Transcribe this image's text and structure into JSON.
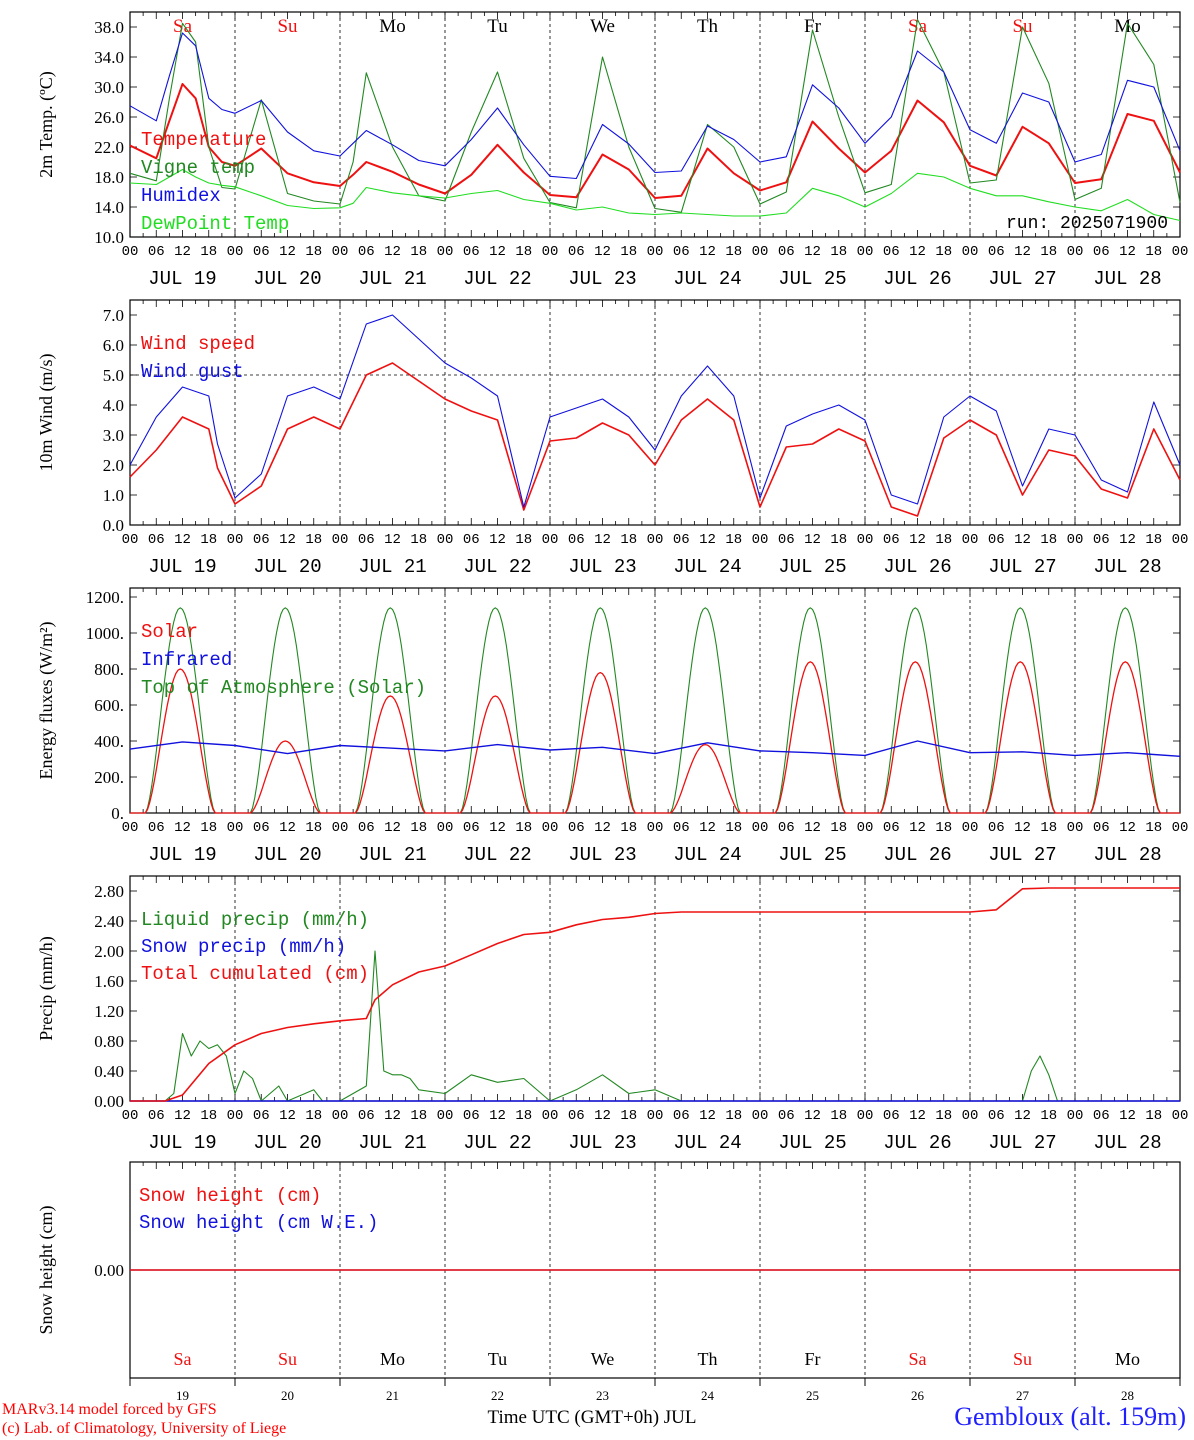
{
  "colors": {
    "red": "#ee1111",
    "green": "#228822",
    "blue": "#1111dd",
    "lightgreen": "#22dd22",
    "axis": "#000000"
  },
  "days": [
    "Sa",
    "Su",
    "Mo",
    "Tu",
    "We",
    "Th",
    "Fr",
    "Sa",
    "Su",
    "Mo"
  ],
  "day_colors": [
    "red",
    "red",
    "black",
    "black",
    "black",
    "black",
    "black",
    "red",
    "red",
    "black"
  ],
  "dates": [
    "JUL 19",
    "JUL 20",
    "JUL 21",
    "JUL 22",
    "JUL 23",
    "JUL 24",
    "JUL 25",
    "JUL 26",
    "JUL 27",
    "JUL 28"
  ],
  "day_numbers": [
    "19",
    "20",
    "21",
    "22",
    "23",
    "24",
    "25",
    "26",
    "27",
    "28"
  ],
  "hour_ticks": [
    "00",
    "06",
    "12",
    "18"
  ],
  "run_label": "run: 2025071900",
  "footer": {
    "xlabel": "Time UTC (GMT+0h) JUL",
    "credit_line1": "MARv3.14 model forced by GFS",
    "credit_line2": "(c) Lab. of Climatology, University of Liege",
    "station": "Gembloux (alt. 159m)"
  },
  "chart_data": [
    {
      "type": "line",
      "ylabel": "2m Temp. (ºC)",
      "ylim": [
        10,
        40
      ],
      "yticks": [
        "10.0",
        "14.0",
        "18.0",
        "22.0",
        "26.0",
        "30.0",
        "34.0",
        "38.0"
      ],
      "x_unit": "hours since JUL 19 00 UTC",
      "x": [
        0,
        6,
        9,
        12,
        15,
        18,
        21,
        24,
        30,
        36,
        42,
        48,
        51,
        54,
        60,
        66,
        72,
        78,
        84,
        90,
        96,
        102,
        108,
        114,
        120,
        126,
        132,
        138,
        144,
        150,
        156,
        162,
        168,
        174,
        180,
        186,
        192,
        198,
        204,
        210,
        216,
        222,
        228,
        234,
        240
      ],
      "series": [
        {
          "name": "Temperature",
          "color": "red",
          "values": [
            22.2,
            20.5,
            25.5,
            30.4,
            28.5,
            22.0,
            20.0,
            19.5,
            21.8,
            18.5,
            17.3,
            16.8,
            18.3,
            20.0,
            18.7,
            17.0,
            15.8,
            18.3,
            22.3,
            18.6,
            15.6,
            15.3,
            21.0,
            19.0,
            15.2,
            15.5,
            21.8,
            18.5,
            16.2,
            17.3,
            25.4,
            21.8,
            18.6,
            21.5,
            28.2,
            25.3,
            19.5,
            18.2,
            24.7,
            22.5,
            17.2,
            17.7,
            26.4,
            25.5,
            18.6
          ]
        },
        {
          "name": "Vigne temp",
          "color": "green",
          "values": [
            18.5,
            17.5,
            28.5,
            38.5,
            36.0,
            22.0,
            16.6,
            16.4,
            28.3,
            15.8,
            14.8,
            14.4,
            20.0,
            31.9,
            22.0,
            15.5,
            14.8,
            24.0,
            32.0,
            20.5,
            14.6,
            13.9,
            34.0,
            22.0,
            13.8,
            13.3,
            25.0,
            22.0,
            14.4,
            16.0,
            37.6,
            26.0,
            15.9,
            17.0,
            39.0,
            32.0,
            17.2,
            17.6,
            38.0,
            30.5,
            15.0,
            16.5,
            38.5,
            33.0,
            14.6
          ]
        },
        {
          "name": "Humidex",
          "color": "blue",
          "values": [
            27.5,
            25.5,
            31.5,
            37.2,
            35.5,
            28.5,
            27.0,
            26.5,
            28.2,
            24.0,
            21.5,
            20.8,
            22.5,
            24.2,
            22.3,
            20.2,
            19.5,
            23.0,
            27.2,
            22.3,
            18.1,
            17.8,
            25.0,
            22.4,
            18.6,
            18.8,
            24.8,
            23.0,
            20.0,
            20.7,
            30.3,
            27.2,
            22.5,
            26.0,
            34.8,
            32.0,
            24.3,
            22.5,
            29.2,
            28.0,
            20.0,
            21.0,
            30.9,
            30.0,
            21.5
          ]
        },
        {
          "name": "DewPoint Temp",
          "color": "lightgreen",
          "values": [
            17.2,
            17.0,
            18.0,
            19.0,
            18.0,
            17.2,
            16.9,
            16.7,
            15.5,
            14.2,
            13.8,
            13.9,
            14.5,
            16.6,
            15.9,
            15.5,
            15.2,
            15.8,
            16.2,
            15.0,
            14.5,
            13.6,
            14.0,
            13.2,
            13.0,
            13.2,
            13.0,
            12.8,
            12.8,
            13.2,
            16.5,
            15.5,
            14.0,
            15.8,
            18.5,
            18.0,
            16.5,
            15.5,
            15.5,
            14.7,
            14.0,
            13.5,
            15.0,
            13.0,
            12.2
          ]
        }
      ]
    },
    {
      "type": "line",
      "ylabel": "10m Wind (m/s)",
      "ylim": [
        0,
        7.5
      ],
      "yticks": [
        "0.0",
        "1.0",
        "2.0",
        "3.0",
        "4.0",
        "5.0",
        "6.0",
        "7.0"
      ],
      "reference_line": 5.0,
      "x_unit": "hours since JUL 19 00 UTC",
      "x": [
        0,
        6,
        12,
        18,
        20,
        24,
        30,
        36,
        42,
        48,
        54,
        60,
        66,
        72,
        78,
        84,
        90,
        96,
        102,
        108,
        114,
        120,
        126,
        132,
        138,
        144,
        150,
        156,
        162,
        168,
        174,
        180,
        186,
        192,
        198,
        204,
        210,
        216,
        222,
        228,
        234,
        240
      ],
      "series": [
        {
          "name": "Wind speed",
          "color": "red",
          "values": [
            1.6,
            2.5,
            3.6,
            3.2,
            1.9,
            0.7,
            1.3,
            3.2,
            3.6,
            3.2,
            5.0,
            5.4,
            4.8,
            4.2,
            3.8,
            3.5,
            0.5,
            2.8,
            2.9,
            3.4,
            3.0,
            2.0,
            3.5,
            4.2,
            3.5,
            0.6,
            2.6,
            2.7,
            3.2,
            2.8,
            0.6,
            0.3,
            2.9,
            3.5,
            3.0,
            1.0,
            2.5,
            2.3,
            1.2,
            0.9,
            3.2,
            1.5
          ]
        },
        {
          "name": "Wind gust",
          "color": "blue",
          "values": [
            2.0,
            3.6,
            4.6,
            4.3,
            2.7,
            0.9,
            1.7,
            4.3,
            4.6,
            4.2,
            6.7,
            7.0,
            6.2,
            5.4,
            4.9,
            4.3,
            0.6,
            3.6,
            3.9,
            4.2,
            3.6,
            2.5,
            4.3,
            5.3,
            4.3,
            0.9,
            3.3,
            3.7,
            4.0,
            3.5,
            1.0,
            0.7,
            3.6,
            4.3,
            3.8,
            1.3,
            3.2,
            3.0,
            1.5,
            1.1,
            4.1,
            2.0
          ]
        }
      ]
    },
    {
      "type": "line",
      "ylabel": "Energy fluxes (W/m²)",
      "ylim": [
        0,
        1250
      ],
      "yticks": [
        "0.",
        "200.",
        "400.",
        "600.",
        "800.",
        "1000.",
        "1200."
      ],
      "x_unit": "hours since JUL 19 00 UTC",
      "series": [
        {
          "name": "Solar",
          "color": "red",
          "daily_peaks": [
            800,
            400,
            650,
            650,
            780,
            380,
            840,
            840,
            840,
            840
          ]
        },
        {
          "name": "Infrared",
          "color": "blue",
          "values": [
            355,
            395,
            375,
            330,
            375,
            360,
            345,
            380,
            350,
            365,
            330,
            390,
            345,
            335,
            320,
            400,
            335,
            340,
            320,
            335,
            315
          ]
        },
        {
          "name": "Top of Atmosphere (Solar)",
          "color": "green",
          "daily_peak": 1140,
          "daylight_hours": [
            3.5,
            19.5
          ]
        }
      ]
    },
    {
      "type": "line",
      "ylabel": "Precip (mm/h)",
      "ylim": [
        0,
        3.0
      ],
      "yticks": [
        "0.00",
        "0.40",
        "0.80",
        "1.20",
        "1.60",
        "2.00",
        "2.40",
        "2.80"
      ],
      "x_unit": "hours since JUL 19 00 UTC",
      "series": [
        {
          "name": "Liquid precip (mm/h)",
          "color": "green",
          "x": [
            0,
            8,
            10,
            12,
            14,
            16,
            18,
            20,
            22,
            24,
            26,
            28,
            30,
            34,
            36,
            42,
            44,
            46,
            48,
            54,
            56,
            58,
            60,
            62,
            64,
            66,
            72,
            78,
            84,
            90,
            96,
            102,
            108,
            114,
            120,
            126,
            198,
            204,
            206,
            208,
            210,
            212,
            240
          ],
          "values": [
            0,
            0,
            0.1,
            0.9,
            0.6,
            0.8,
            0.7,
            0.75,
            0.6,
            0.1,
            0.4,
            0.3,
            0,
            0.2,
            0,
            0.15,
            0,
            0,
            0,
            0.2,
            2.0,
            0.4,
            0.35,
            0.35,
            0.3,
            0.15,
            0.1,
            0.35,
            0.25,
            0.3,
            0,
            0.15,
            0.35,
            0.1,
            0.15,
            0,
            0,
            0,
            0.4,
            0.6,
            0.35,
            0,
            0
          ]
        },
        {
          "name": "Snow precip (mm/h)",
          "color": "blue",
          "values": [
            0
          ]
        },
        {
          "name": "Total cumulated (cm)",
          "color": "red",
          "x": [
            0,
            8,
            12,
            18,
            24,
            30,
            36,
            42,
            48,
            54,
            56,
            60,
            66,
            72,
            78,
            84,
            90,
            96,
            102,
            108,
            114,
            120,
            126,
            132,
            192,
            198,
            204,
            210,
            240
          ],
          "values": [
            0,
            0,
            0.08,
            0.5,
            0.75,
            0.9,
            0.98,
            1.03,
            1.07,
            1.1,
            1.35,
            1.55,
            1.72,
            1.8,
            1.95,
            2.1,
            2.22,
            2.25,
            2.35,
            2.42,
            2.45,
            2.5,
            2.52,
            2.52,
            2.52,
            2.55,
            2.83,
            2.84,
            2.84
          ]
        }
      ]
    },
    {
      "type": "line",
      "ylabel": "Snow height (cm)",
      "yticks": [
        "0.00"
      ],
      "series": [
        {
          "name": "Snow height (cm)",
          "color": "red",
          "values": [
            0
          ]
        },
        {
          "name": "Snow height (cm W.E.)",
          "color": "blue",
          "values": [
            0
          ]
        }
      ]
    }
  ]
}
